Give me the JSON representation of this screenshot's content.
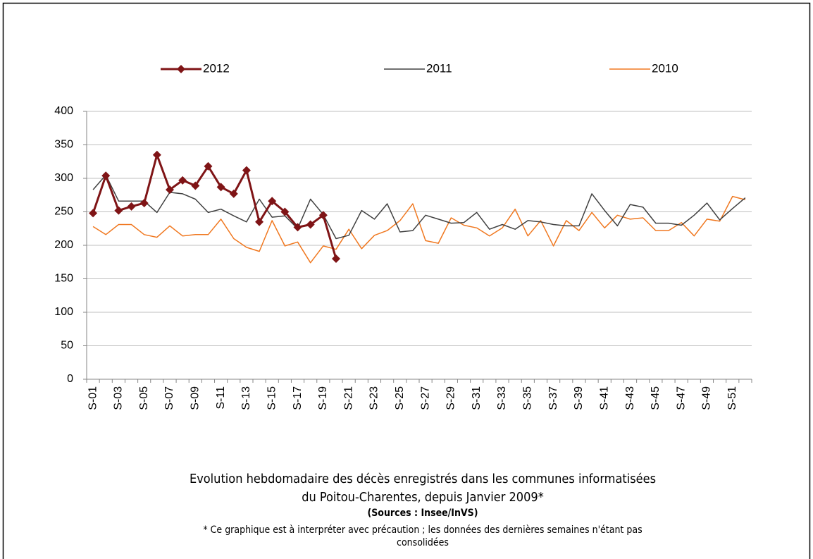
{
  "chart_data": {
    "type": "line",
    "title": [
      "Evolution hebdomadaire des décès enregistrés dans les communes informatisées",
      "du Poitou-Charentes, depuis Janvier  2009*"
    ],
    "source": "(Sources : Insee/InVS)",
    "note": [
      "* Ce graphique est à interpréter avec précaution ; les données des dernières semaines n'étant pas",
      "consolidées"
    ],
    "categories": [
      "S-01",
      null,
      "S-03",
      null,
      "S-05",
      null,
      "S-07",
      null,
      "S-09",
      null,
      "S-11",
      null,
      "S-13",
      null,
      "S-15",
      null,
      "S-17",
      null,
      "S-19",
      null,
      "S-21",
      null,
      "S-23",
      null,
      "S-25",
      null,
      "S-27",
      null,
      "S-29",
      null,
      "S-31",
      null,
      "S-33",
      null,
      "S-35",
      null,
      "S-37",
      null,
      "S-39",
      null,
      "S-41",
      null,
      "S-43",
      null,
      "S-45",
      null,
      "S-47",
      null,
      "S-49",
      null,
      "S-51",
      null
    ],
    "series": [
      {
        "name": "2012",
        "color": "#7f1416",
        "marker": "diamond",
        "values": [
          248,
          304,
          252,
          258,
          263,
          335,
          283,
          297,
          289,
          318,
          287,
          277,
          312,
          235,
          266,
          250,
          227,
          231,
          245,
          180,
          null,
          null,
          null,
          null,
          null,
          null,
          null,
          null,
          null,
          null,
          null,
          null,
          null,
          null,
          null,
          null,
          null,
          null,
          null,
          null,
          null,
          null,
          null,
          null,
          null,
          null,
          null,
          null,
          null,
          null,
          null,
          null
        ]
      },
      {
        "name": "2011",
        "color": "#404040",
        "values": [
          283,
          305,
          266,
          266,
          266,
          249,
          279,
          277,
          269,
          249,
          254,
          244,
          235,
          269,
          242,
          244,
          225,
          269,
          246,
          210,
          215,
          252,
          239,
          262,
          220,
          222,
          245,
          239,
          233,
          234,
          249,
          224,
          231,
          224,
          237,
          235,
          231,
          229,
          229,
          277,
          252,
          229,
          261,
          257,
          233,
          233,
          230,
          245,
          263,
          238,
          255,
          271
        ]
      },
      {
        "name": "2010",
        "color": "#f07820",
        "values": [
          228,
          216,
          231,
          231,
          216,
          212,
          229,
          214,
          216,
          216,
          239,
          210,
          197,
          191,
          237,
          199,
          205,
          174,
          199,
          194,
          224,
          195,
          215,
          222,
          237,
          262,
          207,
          203,
          241,
          230,
          226,
          214,
          226,
          254,
          214,
          237,
          199,
          237,
          222,
          249,
          226,
          245,
          239,
          241,
          222,
          222,
          234,
          214,
          239,
          236,
          273,
          268
        ]
      }
    ],
    "ylim": [
      0,
      400
    ],
    "yticks": [
      0,
      50,
      100,
      150,
      200,
      250,
      300,
      350,
      400
    ],
    "grid": true,
    "legend": "top"
  }
}
